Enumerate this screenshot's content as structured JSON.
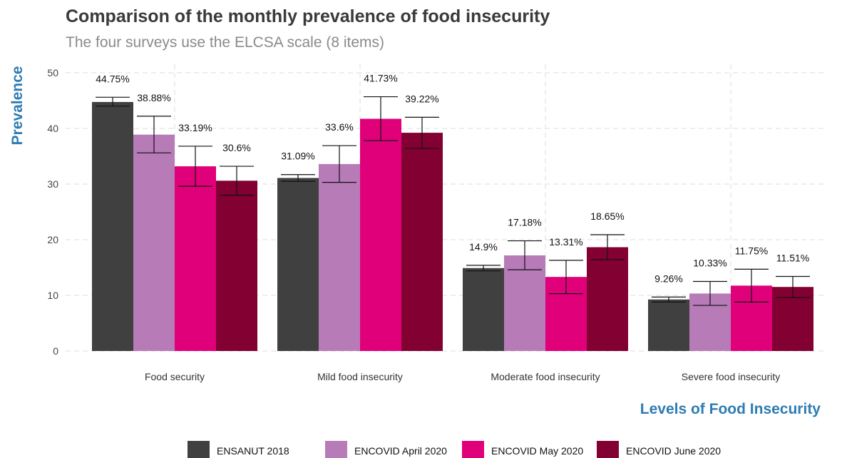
{
  "chart_data": {
    "type": "bar",
    "title": "Comparison of the monthly prevalence of food insecurity",
    "subtitle": "The four surveys use the ELCSA scale (8 items)",
    "xlabel": "Levels of Food Insecurity",
    "ylabel": "Prevalence",
    "ylim": [
      0,
      50
    ],
    "yticks": [
      0,
      10,
      20,
      30,
      40,
      50
    ],
    "grid": true,
    "legend_position": "bottom",
    "categories": [
      "Food security",
      "Mild food insecurity",
      "Moderate food insecurity",
      "Severe food insecurity"
    ],
    "series": [
      {
        "name": "ENSANUT 2018",
        "color": "#404040",
        "values": [
          44.75,
          31.09,
          14.9,
          9.26
        ],
        "labels": [
          "44.75%",
          "31.09%",
          "14.9%",
          "9.26%"
        ],
        "error_low": [
          44.0,
          30.5,
          14.4,
          8.8
        ],
        "error_high": [
          45.6,
          31.7,
          15.4,
          9.7
        ]
      },
      {
        "name": "ENCOVID April 2020",
        "color": "#b77bb8",
        "values": [
          38.88,
          33.6,
          17.18,
          10.33
        ],
        "labels": [
          "38.88%",
          "33.6%",
          "17.18%",
          "10.33%"
        ],
        "error_low": [
          35.6,
          30.3,
          14.6,
          8.2
        ],
        "error_high": [
          42.2,
          36.9,
          19.8,
          12.5
        ]
      },
      {
        "name": "ENCOVID May 2020",
        "color": "#e0007a",
        "values": [
          33.19,
          41.73,
          13.31,
          11.75
        ],
        "labels": [
          "33.19%",
          "41.73%",
          "13.31%",
          "11.75%"
        ],
        "error_low": [
          29.6,
          37.8,
          10.3,
          8.8
        ],
        "error_high": [
          36.8,
          45.7,
          16.3,
          14.7
        ]
      },
      {
        "name": "ENCOVID June 2020",
        "color": "#820032",
        "values": [
          30.6,
          39.22,
          18.65,
          11.51
        ],
        "labels": [
          "30.6%",
          "39.22%",
          "18.65%",
          "11.51%"
        ],
        "error_low": [
          28.0,
          36.4,
          16.4,
          9.6
        ],
        "error_high": [
          33.2,
          42.0,
          20.9,
          13.4
        ]
      }
    ]
  }
}
